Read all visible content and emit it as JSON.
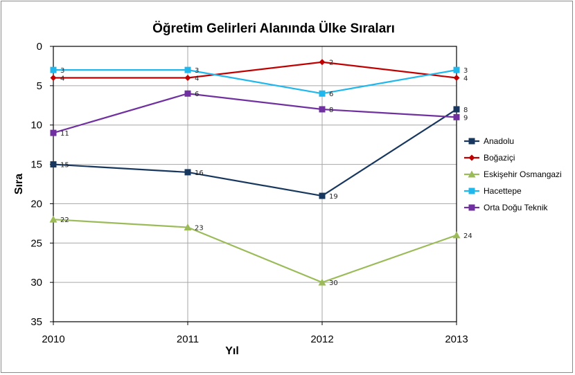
{
  "chart_data": {
    "type": "line",
    "title": "Öğretim Gelirleri Alanında Ülke Sıraları",
    "xlabel": "Yıl",
    "ylabel": "Sıra",
    "x": [
      "2010",
      "2011",
      "2012",
      "2013"
    ],
    "ylim": [
      0,
      35
    ],
    "y_inverted": true,
    "y_ticks": [
      "0",
      "5",
      "10",
      "15",
      "20",
      "25",
      "30",
      "35"
    ],
    "grid": true,
    "legend_position": "right",
    "series": [
      {
        "name": "Anadolu",
        "values": [
          15,
          16,
          19,
          8
        ],
        "color": "#17375E",
        "marker": "square"
      },
      {
        "name": "Boğaziçi",
        "values": [
          4,
          4,
          2,
          4
        ],
        "color": "#C00000",
        "marker": "diamond"
      },
      {
        "name": "Eskişehir Osmangazi",
        "values": [
          22,
          23,
          30,
          24
        ],
        "color": "#9BBB59",
        "marker": "triangle"
      },
      {
        "name": "Hacettepe",
        "values": [
          3,
          3,
          6,
          3
        ],
        "color": "#1FB7EC",
        "marker": "square"
      },
      {
        "name": "Orta Doğu Teknik",
        "values": [
          11,
          6,
          8,
          9
        ],
        "color": "#7030A0",
        "marker": "square"
      }
    ]
  }
}
